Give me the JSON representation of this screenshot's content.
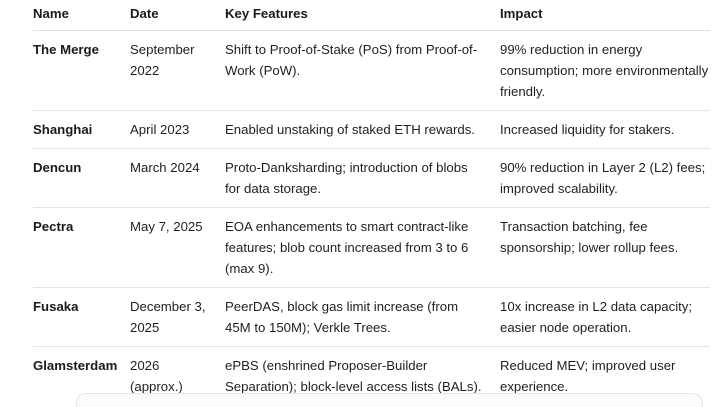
{
  "table": {
    "columns": [
      "Name",
      "Date",
      "Key Features",
      "Impact"
    ],
    "rows": [
      {
        "name": "The Merge",
        "date": "September 2022",
        "features": "Shift to Proof-of-Stake (PoS) from Proof-of-Work (PoW).",
        "impact": "99% reduction in energy consumption; more environmentally friendly."
      },
      {
        "name": "Shanghai",
        "date": "April 2023",
        "features": "Enabled unstaking of staked ETH rewards.",
        "impact": "Increased liquidity for stakers."
      },
      {
        "name": "Dencun",
        "date": "March 2024",
        "features": "Proto-Danksharding; introduction of blobs for data storage.",
        "impact": "90% reduction in Layer 2 (L2) fees; improved scalability."
      },
      {
        "name": "Pectra",
        "date": "May 7, 2025",
        "features": "EOA enhancements to smart contract-like features; blob count increased from 3 to 6 (max 9).",
        "impact": "Transaction batching, fee sponsorship; lower rollup fees."
      },
      {
        "name": "Fusaka",
        "date": "December 3, 2025",
        "features": "PeerDAS, block gas limit increase (from 45M to 150M); Verkle Trees.",
        "impact": "10x increase in L2 data capacity; easier node operation."
      },
      {
        "name": "Glamsterdam",
        "date": "2026 (approx.)",
        "features": "ePBS (enshrined Proposer-Builder Separation); block-level access lists (BALs).",
        "impact": "Reduced MEV; improved user experience."
      }
    ]
  },
  "colors": {
    "text": "#1f1f1f",
    "heading_text": "#1a1a1a",
    "divider": "#e4e4e4",
    "background": "#ffffff",
    "clipped_block_background": "#fbfbfb",
    "clipped_block_border": "#e5e5e5"
  }
}
